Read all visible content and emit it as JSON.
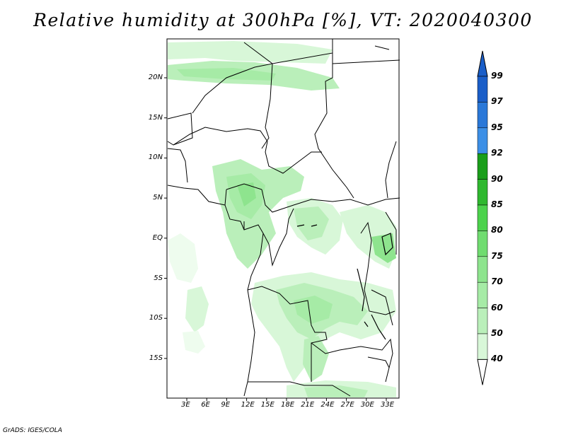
{
  "title": "Relative humidity at 300hPa [%], VT: 2020040300",
  "credit": "GrADS: IGES/COLA",
  "lat_labels": [
    "20N",
    "15N",
    "10N",
    "5N",
    "EQ",
    "5S",
    "10S",
    "15S"
  ],
  "lon_labels": [
    "3E",
    "6E",
    "9E",
    "12E",
    "15E",
    "18E",
    "21E",
    "24E",
    "27E",
    "30E",
    "33E"
  ],
  "colorbar": {
    "levels": [
      "40",
      "50",
      "60",
      "70",
      "75",
      "80",
      "85",
      "90",
      "92",
      "95",
      "97",
      "99"
    ],
    "colors": [
      "#eefcee",
      "#d8f7d8",
      "#baefba",
      "#a6eba6",
      "#8ee48e",
      "#70dc70",
      "#4cd24c",
      "#2fb82f",
      "#1a9e1a",
      "#3c8fe6",
      "#2a78d8",
      "#1a5ec8"
    ],
    "below_color": "#ffffff",
    "above_color": "#1a5ec8"
  }
}
